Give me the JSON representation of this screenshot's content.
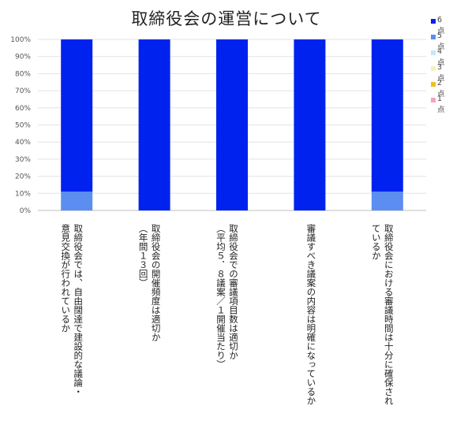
{
  "chart_data": {
    "type": "bar",
    "stacked": "percent",
    "title": "取締役会の運営について",
    "categories": [
      [
        "取締役会では、自由闊達で建設的な議論・",
        "意見交換が行われているか"
      ],
      [
        "取締役会の開催頻度は適切か",
        "（年間１３回）"
      ],
      [
        "取締役会での審議項目数は適切か",
        "（平均５．８議案／１開催当たり）"
      ],
      [
        "審議すべき議案の内容は明確になっているか"
      ],
      [
        "取締役会における審議時間は十分に確保され",
        "ているか"
      ]
    ],
    "series": [
      {
        "name": "6点",
        "color": "#0022ee",
        "values": [
          89,
          100,
          100,
          100,
          89
        ]
      },
      {
        "name": "5点",
        "color": "#5b8ef0",
        "values": [
          11,
          0,
          0,
          0,
          11
        ]
      },
      {
        "name": "4点",
        "color": "#c9e6f7",
        "values": [
          0,
          0,
          0,
          0,
          0
        ]
      },
      {
        "name": "3点",
        "color": "#f4f0c2",
        "values": [
          0,
          0,
          0,
          0,
          0
        ]
      },
      {
        "name": "2点",
        "color": "#f2bf1c",
        "values": [
          0,
          0,
          0,
          0,
          0
        ]
      },
      {
        "name": "1点",
        "color": "#f5a3c2",
        "values": [
          0,
          0,
          0,
          0,
          0
        ]
      }
    ],
    "y_ticks": [
      "0%",
      "10%",
      "20%",
      "30%",
      "40%",
      "50%",
      "60%",
      "70%",
      "80%",
      "90%",
      "100%"
    ],
    "ylim": [
      0,
      100
    ],
    "grid": true,
    "legend_position": "right"
  }
}
